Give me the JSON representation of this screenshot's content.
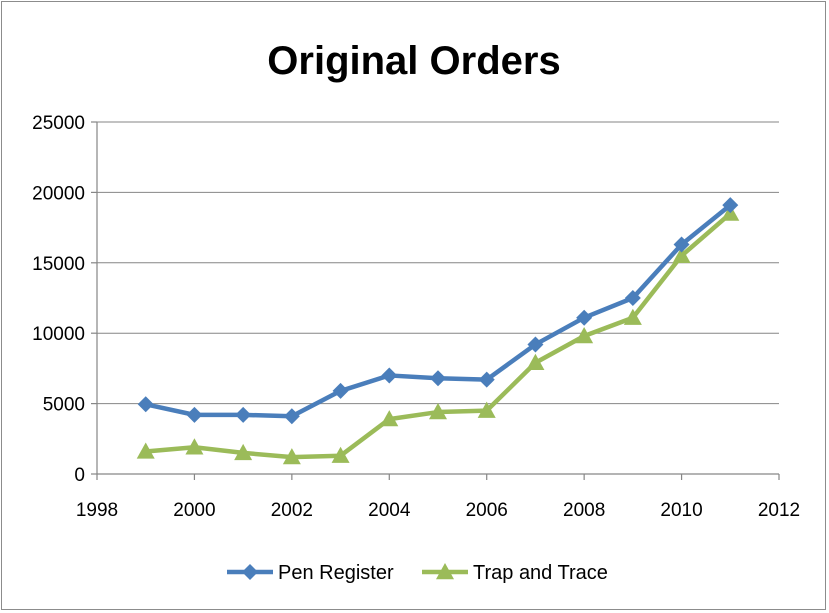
{
  "chart_data": {
    "type": "line",
    "title": "Original Orders",
    "xlabel": "",
    "ylabel": "",
    "xlim": [
      1998,
      2012
    ],
    "ylim": [
      0,
      25000
    ],
    "x_ticks": [
      "1998",
      "2000",
      "2002",
      "2004",
      "2006",
      "2008",
      "2010",
      "2012"
    ],
    "y_ticks": [
      "0",
      "5000",
      "10000",
      "15000",
      "20000",
      "25000"
    ],
    "grid": "horizontal",
    "legend_position": "bottom",
    "series": [
      {
        "name": "Pen Register",
        "color": "#4a7ebb",
        "marker": "diamond",
        "points": [
          {
            "x": 1999,
            "y": 4950
          },
          {
            "x": 2000,
            "y": 4200
          },
          {
            "x": 2001,
            "y": 4200
          },
          {
            "x": 2002,
            "y": 4100
          },
          {
            "x": 2003,
            "y": 5900
          },
          {
            "x": 2004,
            "y": 7000
          },
          {
            "x": 2005,
            "y": 6800
          },
          {
            "x": 2006,
            "y": 6700
          },
          {
            "x": 2007,
            "y": 9200
          },
          {
            "x": 2008,
            "y": 11100
          },
          {
            "x": 2009,
            "y": 12500
          },
          {
            "x": 2010,
            "y": 16300
          },
          {
            "x": 2011,
            "y": 19100
          }
        ]
      },
      {
        "name": "Trap and Trace",
        "color": "#9bbb59",
        "marker": "triangle",
        "points": [
          {
            "x": 1999,
            "y": 1600
          },
          {
            "x": 2000,
            "y": 1900
          },
          {
            "x": 2001,
            "y": 1500
          },
          {
            "x": 2002,
            "y": 1200
          },
          {
            "x": 2003,
            "y": 1300
          },
          {
            "x": 2004,
            "y": 3900
          },
          {
            "x": 2005,
            "y": 4400
          },
          {
            "x": 2006,
            "y": 4500
          },
          {
            "x": 2007,
            "y": 7900
          },
          {
            "x": 2008,
            "y": 9800
          },
          {
            "x": 2009,
            "y": 11100
          },
          {
            "x": 2010,
            "y": 15500
          },
          {
            "x": 2011,
            "y": 18500
          }
        ]
      }
    ]
  }
}
